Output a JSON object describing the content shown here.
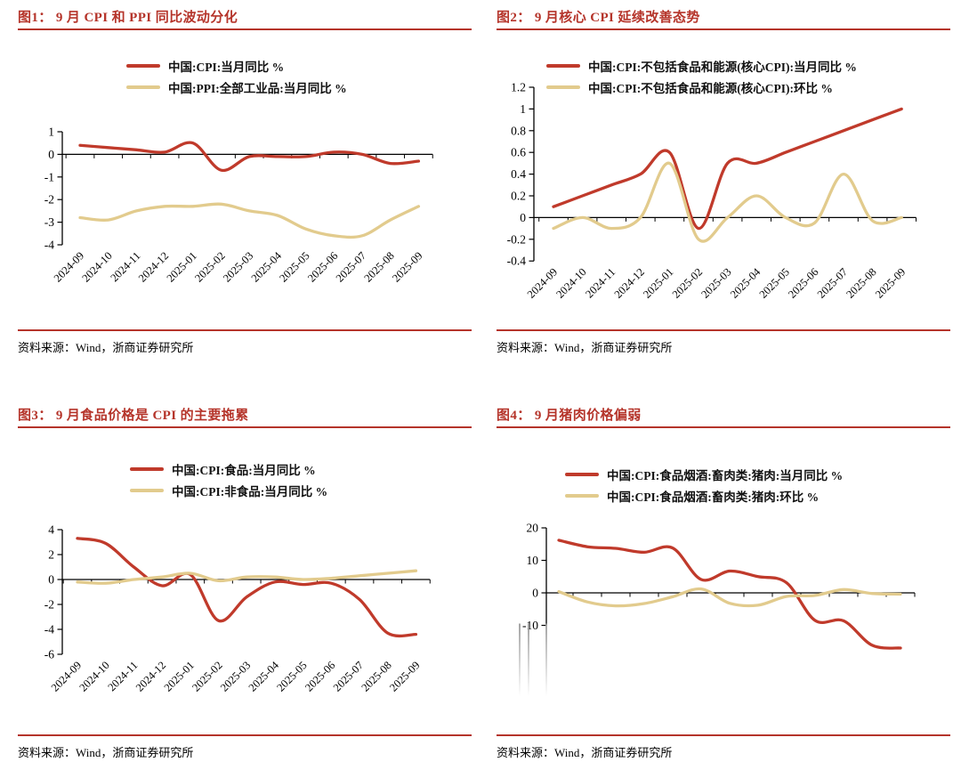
{
  "page": {
    "source_note": "资料来源：Wind，浙商证券研究所"
  },
  "colors": {
    "accent_red": "#b5342a",
    "line_red": "#c03a2b",
    "line_tan": "#e2cb8d",
    "axis_black": "#000000"
  },
  "months": [
    "2024-09",
    "2024-10",
    "2024-11",
    "2024-12",
    "2025-01",
    "2025-02",
    "2025-03",
    "2025-04",
    "2025-05",
    "2025-06",
    "2025-07",
    "2025-08",
    "2025-09"
  ],
  "chart_data": [
    {
      "id": "fig1",
      "type": "line",
      "title": "图1： 9 月 CPI 和 PPI 同比波动分化",
      "categories": [
        "2024-09",
        "2024-10",
        "2024-11",
        "2024-12",
        "2025-01",
        "2025-02",
        "2025-03",
        "2025-04",
        "2025-05",
        "2025-06",
        "2025-07",
        "2025-08",
        "2025-09"
      ],
      "x_labels_visible": true,
      "ylim": [
        -4,
        1
      ],
      "yticks": [
        1,
        0,
        -1,
        -2,
        -3,
        -4
      ],
      "grid": false,
      "legend_position": "top",
      "series": [
        {
          "name": "中国:CPI:当月同比 %",
          "color_key": "line_red",
          "values": [
            0.4,
            0.3,
            0.2,
            0.1,
            0.5,
            -0.7,
            -0.1,
            -0.1,
            -0.1,
            0.1,
            0.0,
            -0.4,
            -0.3
          ]
        },
        {
          "name": "中国:PPI:全部工业品:当月同比 %",
          "color_key": "line_tan",
          "values": [
            -2.8,
            -2.9,
            -2.5,
            -2.3,
            -2.3,
            -2.2,
            -2.5,
            -2.7,
            -3.3,
            -3.6,
            -3.6,
            -2.9,
            -2.3
          ]
        }
      ],
      "source": "资料来源：Wind，浙商证券研究所"
    },
    {
      "id": "fig2",
      "type": "line",
      "title": "图2： 9 月核心 CPI 延续改善态势",
      "categories": [
        "2024-09",
        "2024-10",
        "2024-11",
        "2024-12",
        "2025-01",
        "2025-02",
        "2025-03",
        "2025-04",
        "2025-05",
        "2025-06",
        "2025-07",
        "2025-08",
        "2025-09"
      ],
      "x_labels_visible": true,
      "ylim": [
        -0.4,
        1.2
      ],
      "yticks": [
        1.2,
        1,
        0.8,
        0.6,
        0.4,
        0.2,
        0,
        -0.2,
        -0.4
      ],
      "grid": false,
      "legend_position": "top",
      "series": [
        {
          "name": "中国:CPI:不包括食品和能源(核心CPI):当月同比 %",
          "color_key": "line_red",
          "values": [
            0.1,
            0.2,
            0.3,
            0.4,
            0.6,
            -0.1,
            0.5,
            0.5,
            0.6,
            0.7,
            0.8,
            0.9,
            1.0
          ]
        },
        {
          "name": "中国:CPI:不包括食品和能源(核心CPI):环比 %",
          "color_key": "line_tan",
          "values": [
            -0.1,
            0.0,
            -0.1,
            0.0,
            0.5,
            -0.2,
            0.0,
            0.2,
            0.0,
            -0.05,
            0.4,
            -0.03,
            0.0
          ]
        }
      ],
      "source": "资料来源：Wind，浙商证券研究所"
    },
    {
      "id": "fig3",
      "type": "line",
      "title": "图3： 9 月食品价格是 CPI 的主要拖累",
      "categories": [
        "2024-09",
        "2024-10",
        "2024-11",
        "2024-12",
        "2025-01",
        "2025-02",
        "2025-03",
        "2025-04",
        "2025-05",
        "2025-06",
        "2025-07",
        "2025-08",
        "2025-09"
      ],
      "x_labels_visible": true,
      "ylim": [
        -6,
        4
      ],
      "yticks": [
        4,
        2,
        0,
        -2,
        -4,
        -6
      ],
      "grid": false,
      "legend_position": "top",
      "series": [
        {
          "name": "中国:CPI:食品:当月同比 %",
          "color_key": "line_red",
          "values": [
            3.3,
            2.9,
            1.0,
            -0.5,
            0.4,
            -3.3,
            -1.4,
            -0.2,
            -0.4,
            -0.3,
            -1.6,
            -4.3,
            -4.4
          ]
        },
        {
          "name": "中国:CPI:非食品:当月同比 %",
          "color_key": "line_tan",
          "values": [
            -0.2,
            -0.3,
            0.0,
            0.2,
            0.5,
            -0.1,
            0.2,
            0.2,
            0.0,
            0.1,
            0.3,
            0.5,
            0.7
          ]
        }
      ],
      "source": "资料来源：Wind，浙商证券研究所"
    },
    {
      "id": "fig4",
      "type": "line",
      "title": "图4： 9 月猪肉价格偏弱",
      "x_labels_visible": false,
      "ylim": [
        -10,
        20
      ],
      "yticks": [
        20,
        10,
        0,
        -10
      ],
      "grid": false,
      "legend_position": "top",
      "axis_fades_below": true,
      "series": [
        {
          "name": "中国:CPI:食品烟酒:畜肉类:猪肉:当月同比 %",
          "color_key": "line_red",
          "values": [
            16.2,
            14.2,
            13.7,
            12.5,
            13.8,
            4.1,
            6.7,
            5.0,
            3.1,
            -8.5,
            -8.6,
            -16.1,
            -17.0
          ]
        },
        {
          "name": "中国:CPI:食品烟酒:畜肉类:猪肉:环比 %",
          "color_key": "line_tan",
          "values": [
            0.4,
            -2.8,
            -4.0,
            -3.3,
            -1.2,
            1.2,
            -3.2,
            -3.8,
            -1.1,
            -0.8,
            1.0,
            -0.2,
            -0.4
          ]
        }
      ],
      "source": "资料来源：Wind，浙商证券研究所"
    }
  ]
}
